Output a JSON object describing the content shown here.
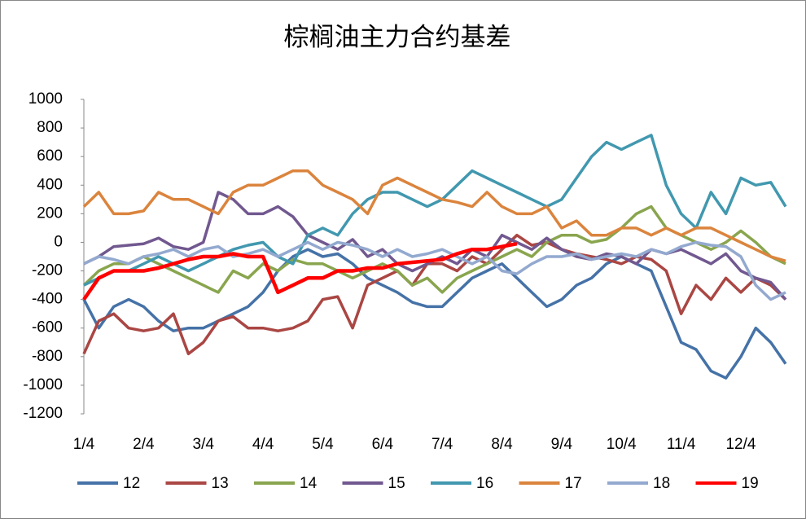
{
  "chart_data": {
    "type": "line",
    "title": "棕榈油主力合约基差",
    "categories": [
      "1/4",
      null,
      null,
      null,
      "2/4",
      null,
      null,
      null,
      "3/4",
      null,
      null,
      null,
      "4/4",
      null,
      null,
      null,
      "5/4",
      null,
      null,
      null,
      "6/4",
      null,
      null,
      null,
      "7/4",
      null,
      null,
      null,
      "8/4",
      null,
      null,
      null,
      "9/4",
      null,
      null,
      null,
      "10/4",
      null,
      null,
      null,
      "11/4",
      null,
      null,
      null,
      "12/4",
      null,
      null,
      null
    ],
    "ylim": [
      -1200,
      1000
    ],
    "yticks": [
      -1200,
      -1000,
      -800,
      -600,
      -400,
      -200,
      0,
      200,
      400,
      600,
      800,
      1000
    ],
    "grid": false,
    "series": [
      {
        "name": "12",
        "color": "#4572a7",
        "values": [
          -400,
          -600,
          -450,
          -400,
          -450,
          -550,
          -620,
          -600,
          -600,
          -550,
          -500,
          -450,
          -350,
          -200,
          -100,
          -50,
          -100,
          -80,
          -150,
          -250,
          -300,
          -350,
          -420,
          -450,
          -450,
          -350,
          -250,
          -200,
          -150,
          -250,
          -350,
          -450,
          -400,
          -300,
          -250,
          -150,
          -100,
          -150,
          -200,
          -450,
          -700,
          -750,
          -900,
          -950,
          -800,
          -600,
          -700,
          -850
        ]
      },
      {
        "name": "13",
        "color": "#aa4643",
        "values": [
          -780,
          -550,
          -500,
          -600,
          -620,
          -600,
          -500,
          -780,
          -700,
          -550,
          -520,
          -600,
          -600,
          -620,
          -600,
          -550,
          -400,
          -380,
          -600,
          -300,
          -250,
          -200,
          -300,
          -150,
          -150,
          -200,
          -100,
          -150,
          -50,
          50,
          -20,
          0,
          -50,
          -80,
          -100,
          -120,
          -150,
          -100,
          -120,
          -200,
          -500,
          -300,
          -400,
          -250,
          -350,
          -250,
          -300,
          -400
        ]
      },
      {
        "name": "14",
        "color": "#89a54e",
        "values": [
          -300,
          -200,
          -150,
          -150,
          -100,
          -150,
          -200,
          -250,
          -300,
          -350,
          -200,
          -250,
          -150,
          -200,
          -120,
          -150,
          -150,
          -200,
          -250,
          -200,
          -150,
          -200,
          -300,
          -250,
          -350,
          -250,
          -200,
          -150,
          -100,
          -50,
          -100,
          0,
          50,
          50,
          0,
          20,
          100,
          200,
          250,
          100,
          50,
          0,
          -50,
          0,
          80,
          0,
          -100,
          -150
        ]
      },
      {
        "name": "15",
        "color": "#71588f",
        "values": [
          -150,
          -100,
          -30,
          -20,
          -10,
          30,
          -30,
          -50,
          0,
          350,
          300,
          200,
          200,
          250,
          180,
          50,
          0,
          -50,
          20,
          -100,
          -50,
          -150,
          -200,
          -150,
          -100,
          -150,
          -50,
          -100,
          50,
          0,
          -50,
          30,
          -50,
          -100,
          -120,
          -80,
          -100,
          -150,
          -50,
          -80,
          -50,
          -100,
          -150,
          -80,
          -200,
          -250,
          -280,
          -400
        ]
      },
      {
        "name": "16",
        "color": "#4198af",
        "values": [
          -300,
          -250,
          -200,
          -200,
          -150,
          -100,
          -150,
          -200,
          -150,
          -100,
          -50,
          -20,
          0,
          -100,
          -150,
          50,
          100,
          50,
          200,
          300,
          350,
          350,
          300,
          250,
          300,
          400,
          500,
          450,
          400,
          350,
          300,
          250,
          300,
          450,
          600,
          700,
          650,
          700,
          750,
          400,
          200,
          100,
          350,
          200,
          450,
          400,
          420,
          250
        ]
      },
      {
        "name": "17",
        "color": "#db843d",
        "values": [
          250,
          350,
          200,
          200,
          220,
          350,
          300,
          300,
          250,
          200,
          350,
          400,
          400,
          450,
          500,
          500,
          400,
          350,
          300,
          200,
          400,
          450,
          400,
          350,
          300,
          280,
          250,
          350,
          250,
          200,
          200,
          250,
          100,
          150,
          50,
          50,
          100,
          100,
          50,
          100,
          50,
          100,
          100,
          50,
          0,
          -50,
          -100,
          -130
        ]
      },
      {
        "name": "18",
        "color": "#93a9cf",
        "values": [
          -150,
          -100,
          -120,
          -150,
          -100,
          -80,
          -50,
          -100,
          -50,
          -30,
          -100,
          -80,
          -50,
          -100,
          -50,
          0,
          -50,
          0,
          -20,
          -50,
          -100,
          -50,
          -100,
          -80,
          -50,
          -100,
          -150,
          -100,
          -200,
          -220,
          -150,
          -100,
          -100,
          -80,
          -120,
          -100,
          -80,
          -100,
          -50,
          -80,
          -30,
          0,
          -20,
          -30,
          -100,
          -300,
          -400,
          -350
        ]
      },
      {
        "name": "19",
        "color": "#ff0000",
        "values": [
          -400,
          -250,
          -200,
          -200,
          -200,
          -180,
          -150,
          -120,
          -100,
          -100,
          -80,
          -100,
          -100,
          -350,
          -300,
          -250,
          -250,
          -200,
          -200,
          -180,
          -180,
          -150,
          -140,
          -130,
          -120,
          -80,
          -50,
          -50,
          -30,
          -10,
          null,
          null,
          null,
          null,
          null,
          null,
          null,
          null,
          null,
          null,
          null,
          null,
          null,
          null,
          null,
          null,
          null,
          null
        ]
      }
    ]
  }
}
